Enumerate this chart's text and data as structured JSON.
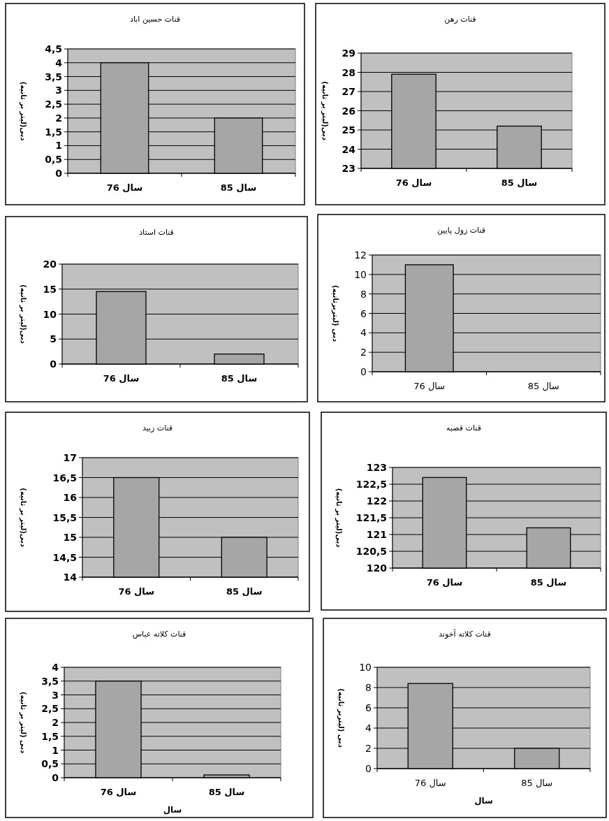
{
  "chart_data": [
    {
      "type": "bar",
      "title": "قنات حسین اباد",
      "ylabel": "دبی(لیتر بر ثانیه)",
      "categories": [
        "سال 76",
        "سال 85"
      ],
      "values": [
        4,
        2
      ],
      "color": "#a6a6a6",
      "ylim": [
        0,
        4.5
      ],
      "yticks": [
        0,
        {
          "value": 0.5,
          "label": "0,5"
        },
        1,
        {
          "value": 1.5,
          "label": "1,5"
        },
        2,
        {
          "value": 2.5,
          "label": "2,5"
        },
        3,
        {
          "value": 3.5,
          "label": "3,5"
        },
        4,
        {
          "value": 4.5,
          "label": "4,5"
        }
      ],
      "grid": "y"
    },
    {
      "type": "bar",
      "title": "قنات رهن",
      "ylabel": "دبی(لیتر بر ثانیه)",
      "categories": [
        "سال 76",
        "سال 85"
      ],
      "values": [
        27.9,
        25.2
      ],
      "color": "#a6a6a6",
      "ylim": [
        23,
        29
      ],
      "yticks": [
        23,
        24,
        25,
        26,
        27,
        28,
        29
      ],
      "grid": "y"
    },
    {
      "type": "bar",
      "title": "قنات استاد",
      "ylabel": "دبی(لیتر بر ثانیه)",
      "categories": [
        "سال 76",
        "سال 85"
      ],
      "values": [
        14.5,
        2
      ],
      "color": "#a6a6a6",
      "ylim": [
        0,
        20
      ],
      "yticks": [
        0,
        5,
        10,
        15,
        20
      ],
      "grid": "y"
    },
    {
      "type": "bar",
      "title": "قنات زول پایین",
      "ylabel": "دبی (لیتربرثانیه)",
      "categories": [
        "سال 76",
        "سال 85"
      ],
      "values": [
        11,
        null
      ],
      "color": "#a6a6a6",
      "ylim": [
        0,
        12
      ],
      "yticks": [
        0,
        2,
        4,
        6,
        8,
        10,
        12
      ],
      "grid": "y"
    },
    {
      "type": "bar",
      "title": "قنات زبید",
      "ylabel": "دبی(لیتر بر ثانیه)",
      "categories": [
        "سال 76",
        "سال 85"
      ],
      "values": [
        16.5,
        15
      ],
      "color": "#a6a6a6",
      "ylim": [
        14,
        17
      ],
      "yticks": [
        14,
        {
          "value": 14.5,
          "label": "14,5"
        },
        15,
        {
          "value": 15.5,
          "label": "15,5"
        },
        16,
        {
          "value": 16.5,
          "label": "16,5"
        },
        17
      ],
      "grid": "y"
    },
    {
      "type": "bar",
      "title": "قنات قصبه",
      "ylabel": "دبی(لیتر بر ثانیه)",
      "categories": [
        "سال 76",
        "سال 85"
      ],
      "values": [
        122.7,
        121.2
      ],
      "color": "#a6a6a6",
      "ylim": [
        120,
        123
      ],
      "yticks": [
        120,
        {
          "value": 120.5,
          "label": "120,5"
        },
        121,
        {
          "value": 121.5,
          "label": "121,5"
        },
        122,
        {
          "value": 122.5,
          "label": "122,5"
        },
        123
      ],
      "grid": "y"
    },
    {
      "type": "bar",
      "title": "قنات کلاته عباس",
      "ylabel": "دبی (لیتر بر ثانیه)",
      "xlabel": "سال",
      "categories": [
        "سال 76",
        "سال 85"
      ],
      "values": [
        3.5,
        0.1
      ],
      "color": "#a6a6a6",
      "ylim": [
        0,
        4
      ],
      "yticks": [
        0,
        {
          "value": 0.5,
          "label": "0,5"
        },
        1,
        {
          "value": 1.5,
          "label": "1,5"
        },
        2,
        {
          "value": 2.5,
          "label": "2,5"
        },
        3,
        {
          "value": 3.5,
          "label": "3,5"
        },
        4
      ],
      "grid": "y"
    },
    {
      "type": "bar",
      "title": "قنات کلاته آخوند",
      "ylabel": "دبی (لیتربر ثانیه)",
      "xlabel": "سال",
      "categories": [
        "سال 76",
        "سال 85"
      ],
      "values": [
        8.4,
        2
      ],
      "color": "#a6a6a6",
      "ylim": [
        0,
        10
      ],
      "yticks": [
        0,
        2,
        4,
        6,
        8,
        10
      ],
      "grid": "y"
    }
  ]
}
